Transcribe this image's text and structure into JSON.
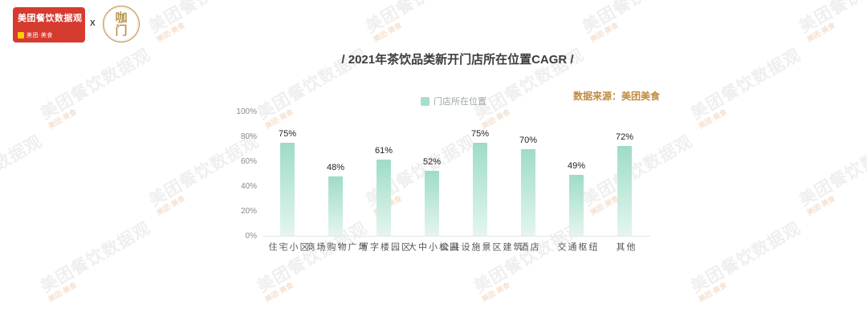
{
  "page": {
    "watermark_text": "美团餐饮数据观",
    "watermark_subtext": "美团·美食"
  },
  "header": {
    "logo_title": "美团餐饮数据观",
    "logo_tag": "美团·美食",
    "separator": "X",
    "partner_logo": "咖门"
  },
  "title": "/ 2021年茶饮品类新开门店所在位置CAGR /",
  "legend_label": "门店所在位置",
  "source_label": "数据来源：美团美食",
  "colors": {
    "logo_red": "#d63b30",
    "logo_gold": "#bb9656",
    "bar_top": "#9edcc6",
    "bar_bottom": "#e4f6ed",
    "legend_swatch": "#a6e0cc",
    "source_text": "#c08a3f"
  },
  "chart_data": {
    "type": "bar",
    "title": "2021年茶饮品类新开门店所在位置CAGR",
    "series_name": "门店所在位置",
    "categories": [
      "住宅小区",
      "商场购物广场",
      "写字楼园区",
      "大中小校园",
      "公共设施景区建筑",
      "酒店",
      "交通枢纽",
      "其他"
    ],
    "values": [
      75,
      48,
      61,
      52,
      75,
      70,
      49,
      72
    ],
    "unit": "%",
    "ylim": [
      0,
      100
    ],
    "ytick_labels": [
      "0%",
      "20%",
      "40%",
      "60%",
      "80%",
      "100%"
    ],
    "grid": false,
    "legend_position": "top-center",
    "source": "数据来源：美团美食"
  }
}
